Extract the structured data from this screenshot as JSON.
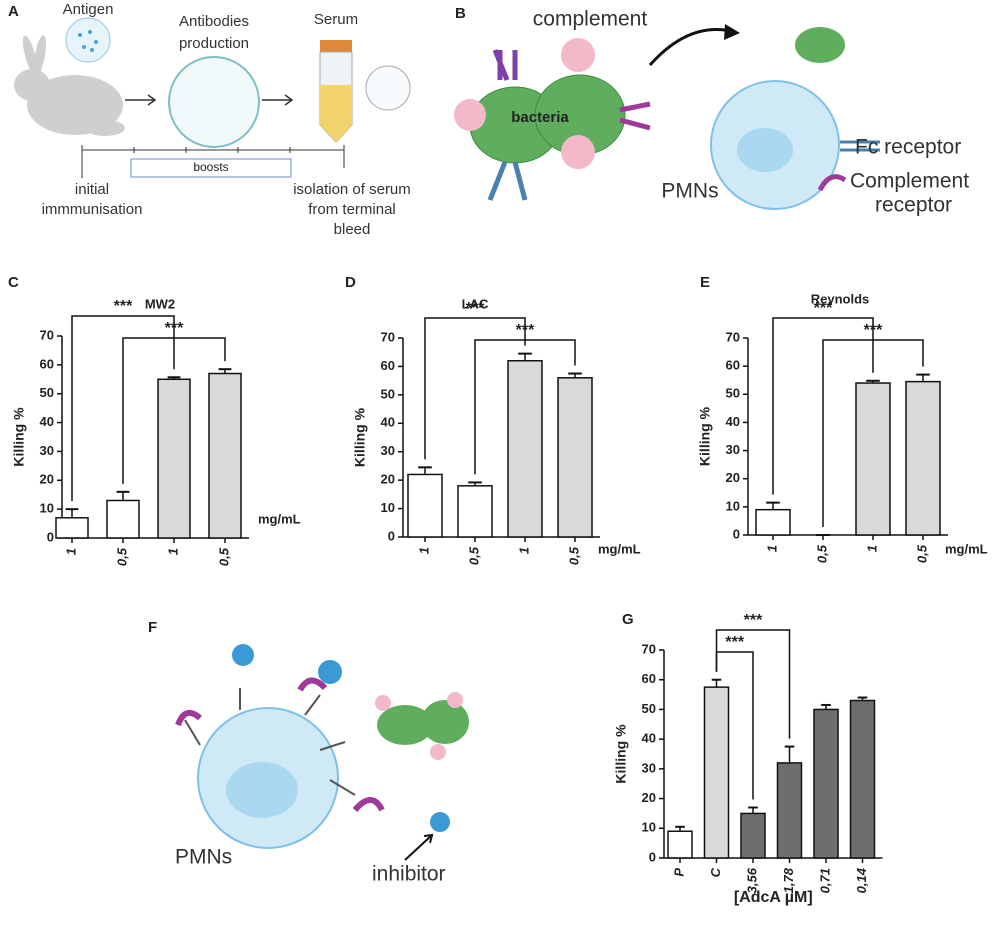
{
  "panel_a": {
    "label": "A",
    "antigen": "Antigen",
    "production": [
      "Antibodies",
      "production"
    ],
    "serum": "Serum",
    "boosts": "boosts",
    "start": [
      "initial",
      "immmunisation"
    ],
    "end": [
      "isolation of serum",
      "from terminal",
      "bleed"
    ]
  },
  "panel_b": {
    "label": "B",
    "complement": "complement",
    "bacteria": "bacteria",
    "fc_receptor": "Fc receptor",
    "complement_receptor": [
      "Complement",
      "receptor"
    ],
    "cells": "PMNs"
  },
  "panel_f": {
    "label": "F",
    "cells": "PMNs",
    "inhibitor": "inhibitor"
  },
  "chart_data": [
    {
      "type": "bar",
      "label": "C",
      "title": "MW2",
      "y_label": "Killing %",
      "unit": "mg/mL",
      "categories": [
        "1",
        "0,5",
        "1",
        "0,5"
      ],
      "values": [
        7,
        13,
        55,
        57
      ],
      "errors": [
        3,
        3,
        0.7,
        1.5
      ],
      "colors": [
        "#ffffff",
        "#ffffff",
        "#d9d9d9",
        "#d9d9d9"
      ],
      "ylim": [
        0,
        70
      ],
      "yticks": [
        0,
        10,
        20,
        30,
        40,
        50,
        60,
        70
      ],
      "comparisons": [
        {
          "between": [
            0,
            2
          ],
          "label": "***"
        },
        {
          "between": [
            1,
            3
          ],
          "label": "***"
        }
      ]
    },
    {
      "type": "bar",
      "label": "D",
      "title": "LAC",
      "y_label": "Killing %",
      "unit": "mg/mL",
      "categories": [
        "1",
        "0,5",
        "1",
        "0,5"
      ],
      "values": [
        22,
        18,
        62,
        56
      ],
      "errors": [
        2.5,
        1.2,
        2.5,
        1.5
      ],
      "colors": [
        "#ffffff",
        "#ffffff",
        "#d9d9d9",
        "#d9d9d9"
      ],
      "ylim": [
        0,
        70
      ],
      "yticks": [
        0,
        10,
        20,
        30,
        40,
        50,
        60,
        70
      ],
      "comparisons": [
        {
          "between": [
            0,
            2
          ],
          "label": "***"
        },
        {
          "between": [
            1,
            3
          ],
          "label": "***"
        }
      ]
    },
    {
      "type": "bar",
      "label": "E",
      "title": "Reynolds",
      "y_label": "Killing %",
      "unit": "mg/mL",
      "categories": [
        "1",
        "0,5",
        "1",
        "0,5"
      ],
      "values": [
        9,
        0,
        54,
        54.5
      ],
      "errors": [
        2.5,
        0,
        0.8,
        2.5
      ],
      "colors": [
        "#ffffff",
        "#ffffff",
        "#d9d9d9",
        "#d9d9d9"
      ],
      "ylim": [
        0,
        70
      ],
      "yticks": [
        0,
        10,
        20,
        30,
        40,
        50,
        60,
        70
      ],
      "comparisons": [
        {
          "between": [
            0,
            2
          ],
          "label": "***"
        },
        {
          "between": [
            1,
            3
          ],
          "label": "***"
        }
      ]
    },
    {
      "type": "bar",
      "label": "G",
      "y_label": "Killing %",
      "x_label": "[AdcA µM]",
      "categories": [
        "P",
        "C",
        "3,56",
        "1,78",
        "0,71",
        "0,14"
      ],
      "values": [
        9,
        57.5,
        15,
        32,
        50,
        53
      ],
      "errors": [
        1.5,
        2.5,
        2,
        5.5,
        1.5,
        1
      ],
      "colors": [
        "#ffffff",
        "#d9d9d9",
        "#6e6e6e",
        "#6e6e6e",
        "#6e6e6e",
        "#6e6e6e"
      ],
      "ylim": [
        0,
        70
      ],
      "yticks": [
        0,
        10,
        20,
        30,
        40,
        50,
        60,
        70
      ],
      "comparisons": [
        {
          "between": [
            1,
            2
          ],
          "label": "***"
        },
        {
          "between": [
            1,
            3
          ],
          "label": "***"
        }
      ]
    }
  ]
}
